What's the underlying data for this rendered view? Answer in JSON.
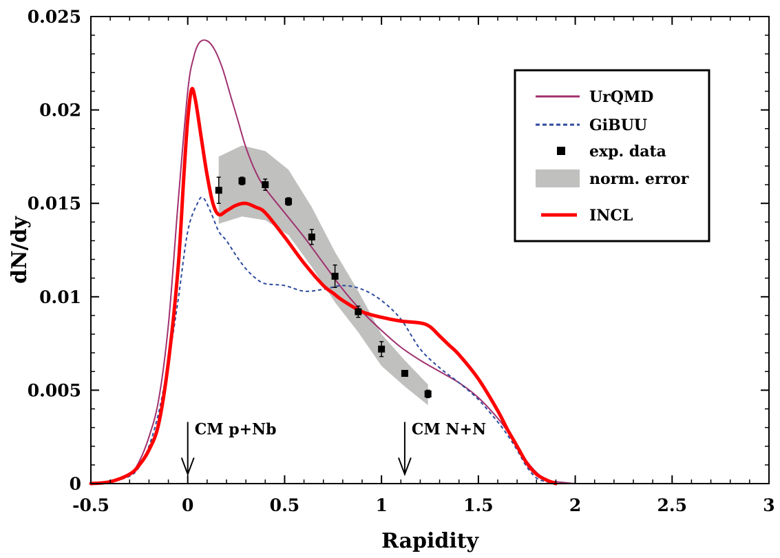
{
  "chart_data": {
    "type": "line",
    "xlabel": "Rapidity",
    "ylabel": "dN/dy",
    "xlim": [
      -0.5,
      3
    ],
    "ylim": [
      0,
      0.025
    ],
    "xticks": [
      -0.5,
      0,
      0.5,
      1,
      1.5,
      2,
      2.5,
      3
    ],
    "xtick_labels": [
      "-0.5",
      "0",
      "0.5",
      "1",
      "1.5",
      "2",
      "2.5",
      "3"
    ],
    "yticks": [
      0,
      0.005,
      0.01,
      0.015,
      0.02,
      0.025
    ],
    "ytick_labels": [
      "0",
      "0.005",
      "0.01",
      "0.015",
      "0.02",
      "0.025"
    ],
    "grid": false,
    "legend_position": "top-right",
    "series": [
      {
        "name": "UrQMD",
        "style": "solid-thin",
        "color": "#a0306e",
        "x": [
          -0.5,
          -0.4,
          -0.3,
          -0.25,
          -0.2,
          -0.15,
          -0.1,
          -0.05,
          0,
          0.03,
          0.06,
          0.1,
          0.14,
          0.18,
          0.22,
          0.26,
          0.3,
          0.35,
          0.4,
          0.5,
          0.6,
          0.7,
          0.8,
          0.9,
          1.0,
          1.1,
          1.2,
          1.3,
          1.4,
          1.5,
          1.6,
          1.65,
          1.7,
          1.75,
          1.8,
          1.85,
          1.9,
          2.0
        ],
        "y": [
          0,
          0.0001,
          0.0005,
          0.0012,
          0.0025,
          0.0045,
          0.0085,
          0.015,
          0.021,
          0.0228,
          0.0236,
          0.0237,
          0.0232,
          0.0222,
          0.0208,
          0.0194,
          0.018,
          0.0167,
          0.0158,
          0.0145,
          0.0132,
          0.0118,
          0.0104,
          0.0092,
          0.0082,
          0.0073,
          0.0066,
          0.006,
          0.0054,
          0.0046,
          0.0035,
          0.0028,
          0.002,
          0.0012,
          0.0006,
          0.0002,
          0.0001,
          0
        ]
      },
      {
        "name": "GiBUU",
        "style": "dashed",
        "color": "#2c4a9e",
        "x": [
          -0.5,
          -0.4,
          -0.3,
          -0.25,
          -0.2,
          -0.15,
          -0.1,
          -0.05,
          0,
          0.05,
          0.08,
          0.12,
          0.16,
          0.2,
          0.25,
          0.3,
          0.35,
          0.4,
          0.5,
          0.6,
          0.7,
          0.8,
          0.9,
          1.0,
          1.1,
          1.2,
          1.3,
          1.4,
          1.5,
          1.6,
          1.65,
          1.7,
          1.75,
          1.8,
          1.85,
          1.9
        ],
        "y": [
          0,
          0.0001,
          0.0004,
          0.0009,
          0.002,
          0.0038,
          0.0065,
          0.0098,
          0.0135,
          0.015,
          0.0153,
          0.0145,
          0.0135,
          0.013,
          0.0122,
          0.0115,
          0.011,
          0.0107,
          0.0106,
          0.0103,
          0.0104,
          0.0106,
          0.0104,
          0.0098,
          0.0088,
          0.0072,
          0.0062,
          0.0054,
          0.0045,
          0.0033,
          0.0026,
          0.0018,
          0.0009,
          0.0003,
          0.0001,
          0
        ]
      },
      {
        "name": "INCL",
        "style": "solid-thick",
        "color": "#ff0000",
        "x": [
          -0.5,
          -0.4,
          -0.3,
          -0.25,
          -0.2,
          -0.15,
          -0.1,
          -0.05,
          -0.02,
          0,
          0.02,
          0.04,
          0.07,
          0.1,
          0.13,
          0.16,
          0.2,
          0.25,
          0.3,
          0.35,
          0.4,
          0.5,
          0.6,
          0.7,
          0.75,
          0.8,
          0.9,
          1.0,
          1.1,
          1.2,
          1.25,
          1.3,
          1.35,
          1.4,
          1.5,
          1.6,
          1.65,
          1.7,
          1.75,
          1.8,
          1.85,
          1.9
        ],
        "y": [
          0,
          0.0001,
          0.0005,
          0.001,
          0.0018,
          0.0032,
          0.0065,
          0.0115,
          0.0165,
          0.0195,
          0.0211,
          0.0205,
          0.0185,
          0.0165,
          0.015,
          0.0144,
          0.0146,
          0.0149,
          0.015,
          0.0148,
          0.0145,
          0.0132,
          0.0118,
          0.0106,
          0.0102,
          0.0098,
          0.0092,
          0.0089,
          0.0087,
          0.0086,
          0.0084,
          0.0079,
          0.0074,
          0.0069,
          0.0056,
          0.0039,
          0.0029,
          0.002,
          0.0011,
          0.0005,
          0.0002,
          0
        ]
      },
      {
        "name": "exp. data",
        "style": "points",
        "color": "#000000",
        "x": [
          0.16,
          0.28,
          0.4,
          0.52,
          0.64,
          0.76,
          0.88,
          1.0,
          1.12,
          1.24
        ],
        "y": [
          0.0157,
          0.0162,
          0.016,
          0.0151,
          0.0132,
          0.0111,
          0.0092,
          0.0072,
          0.0059,
          0.0048
        ],
        "err": [
          0.0007,
          0.0002,
          0.0003,
          0.0002,
          0.0004,
          0.0006,
          0.0003,
          0.0004,
          0.0001,
          0.0002
        ]
      },
      {
        "name": "norm. error",
        "style": "band",
        "color": "#c0c0be",
        "x": [
          0.16,
          0.28,
          0.4,
          0.52,
          0.64,
          0.76,
          0.88,
          1.0,
          1.12,
          1.24
        ],
        "y_low": [
          0.0139,
          0.0143,
          0.0141,
          0.0133,
          0.0116,
          0.0097,
          0.0081,
          0.0063,
          0.0052,
          0.0042
        ],
        "y_high": [
          0.0175,
          0.0181,
          0.0178,
          0.0168,
          0.0148,
          0.0124,
          0.0103,
          0.008,
          0.0066,
          0.0053
        ]
      }
    ],
    "annotations": [
      {
        "text": "CM p+Nb",
        "x": 0,
        "y_tip": 0.0005,
        "y_tail": 0.0033
      },
      {
        "text": "CM N+N",
        "x": 1.12,
        "y_tip": 0.0005,
        "y_tail": 0.0033
      }
    ]
  }
}
